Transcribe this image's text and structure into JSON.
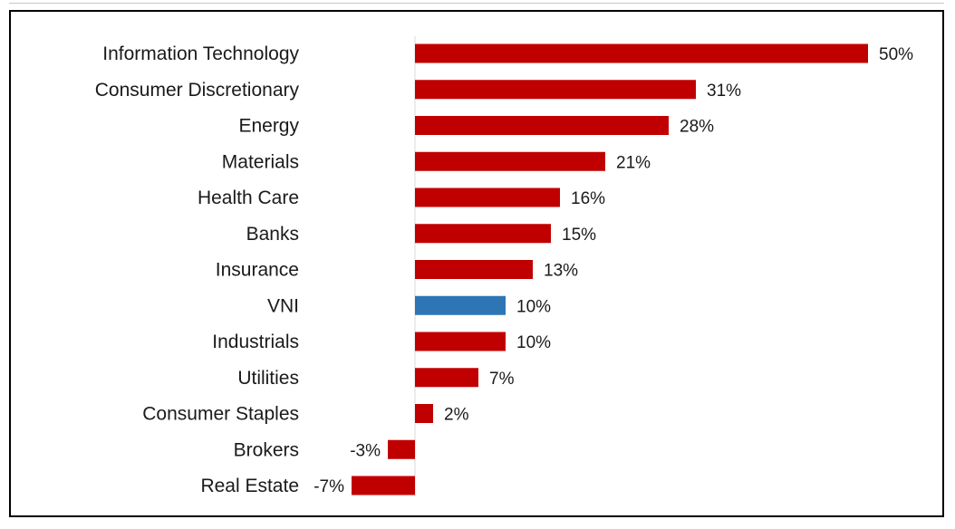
{
  "chart_data": {
    "type": "bar",
    "orientation": "horizontal",
    "title": "",
    "xlabel": "",
    "ylabel": "",
    "value_suffix": "%",
    "categories": [
      "Information Technology",
      "Consumer Discretionary",
      "Energy",
      "Materials",
      "Health Care",
      "Banks",
      "Insurance",
      "VNI",
      "Industrials",
      "Utilities",
      "Consumer Staples",
      "Brokers",
      "Real Estate"
    ],
    "values": [
      50,
      31,
      28,
      21,
      16,
      15,
      13,
      10,
      10,
      7,
      2,
      -3,
      -7
    ],
    "value_labels": [
      "50%",
      "31%",
      "28%",
      "21%",
      "16%",
      "15%",
      "13%",
      "10%",
      "10%",
      "7%",
      "2%",
      "-3%",
      "-7%"
    ],
    "highlight_category": "VNI",
    "colors": {
      "default": "#c00000",
      "highlight": "#2e75b6",
      "axis": "#d9d9d9",
      "text": "#1a1a1a"
    },
    "xlim": [
      -7,
      50
    ],
    "grid": false,
    "legend": "none"
  }
}
